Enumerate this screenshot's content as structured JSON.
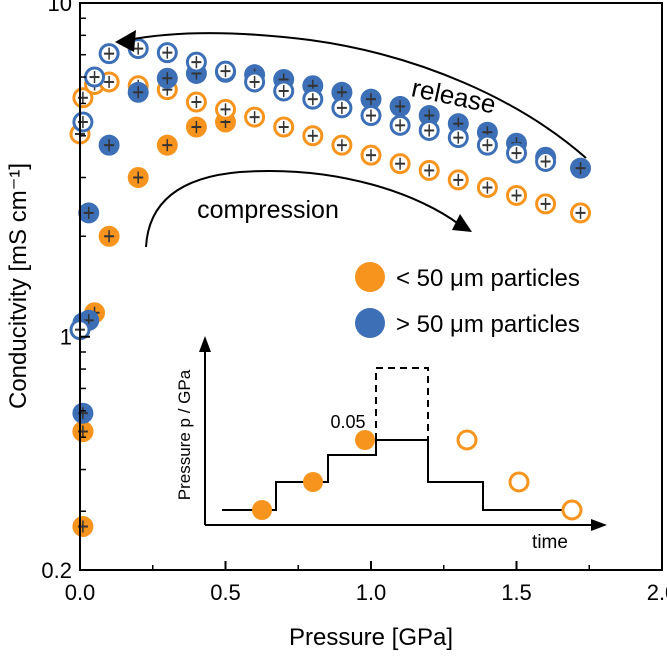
{
  "chart_data": {
    "type": "scatter",
    "xlabel": "Pressure [GPa]",
    "ylabel": "Conducitvity [mS cm⁻¹]",
    "xlim": [
      0.0,
      2.0
    ],
    "ylim": [
      0.2,
      10
    ],
    "y_scale": "log",
    "x_ticks": [
      "0.0",
      "0.5",
      "1.0",
      "1.5",
      "2.0"
    ],
    "y_ticks": [
      "0.2",
      "1",
      "10"
    ],
    "legend": [
      {
        "label": "< 50 μm particles",
        "color": "#f7941d"
      },
      {
        "label": "> 50 μm particles",
        "color": "#3d6fb6"
      }
    ],
    "annotations": {
      "release": "release",
      "compression": "compression"
    },
    "series": [
      {
        "name": "< 50 μm particles",
        "phase": "compression",
        "marker": "filled",
        "color": "#f7941d",
        "x": [
          0.01,
          0.01,
          0.01,
          0.05,
          0.1,
          0.2,
          0.3,
          0.4,
          0.5
        ],
        "y": [
          0.27,
          0.52,
          0.52,
          1.18,
          2.0,
          3.0,
          3.75,
          4.25,
          4.4
        ]
      },
      {
        "name": "< 50 μm particles",
        "phase": "release",
        "marker": "open",
        "color": "#f7941d",
        "x": [
          0.0,
          0.01,
          0.05,
          0.1,
          0.2,
          0.3,
          0.4,
          0.5,
          0.6,
          0.7,
          0.8,
          0.9,
          1.0,
          1.1,
          1.2,
          1.3,
          1.4,
          1.5,
          1.6,
          1.72
        ],
        "y": [
          4.05,
          5.2,
          5.7,
          5.8,
          5.65,
          5.5,
          5.05,
          4.8,
          4.55,
          4.25,
          4.0,
          3.75,
          3.5,
          3.3,
          3.15,
          2.95,
          2.8,
          2.65,
          2.5,
          2.35
        ]
      },
      {
        "name": "> 50 μm particles",
        "phase": "compression",
        "marker": "filled",
        "color": "#3d6fb6",
        "x": [
          0.01,
          0.01,
          0.03,
          0.03,
          0.1,
          0.2,
          0.3,
          0.4,
          0.5,
          0.6,
          0.7,
          0.8,
          0.9,
          1.0,
          1.1,
          1.2,
          1.3,
          1.4,
          1.5,
          1.6,
          1.72
        ],
        "y": [
          0.59,
          1.1,
          1.12,
          2.35,
          3.75,
          5.4,
          5.95,
          6.15,
          6.2,
          6.1,
          5.9,
          5.65,
          5.4,
          5.15,
          4.9,
          4.6,
          4.35,
          4.1,
          3.8,
          3.45,
          3.2
        ]
      },
      {
        "name": "> 50 μm particles",
        "phase": "release",
        "marker": "open",
        "color": "#3d6fb6",
        "x": [
          0.0,
          0.01,
          0.05,
          0.1,
          0.2,
          0.3,
          0.4,
          0.5,
          0.6,
          0.7,
          0.8,
          0.9,
          1.0,
          1.1,
          1.2,
          1.3,
          1.4,
          1.5,
          1.6
        ],
        "y": [
          1.05,
          4.4,
          6.0,
          7.05,
          7.3,
          7.1,
          6.65,
          6.25,
          5.8,
          5.45,
          5.15,
          4.85,
          4.6,
          4.3,
          4.15,
          3.95,
          3.75,
          3.55,
          3.35
        ]
      }
    ],
    "inset": {
      "ylabel": "Pressure p / GPa",
      "xlabel": "time",
      "label": "0.05"
    }
  }
}
